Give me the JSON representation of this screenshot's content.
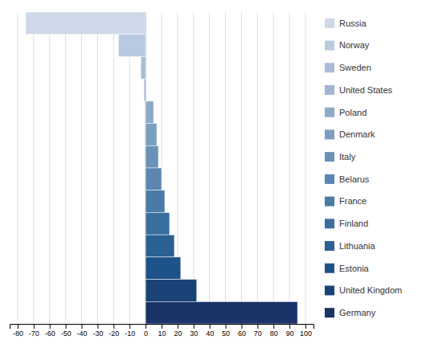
{
  "chart_data": {
    "type": "bar",
    "orientation": "horizontal",
    "categories": [
      "Russia",
      "Norway",
      "Sweden",
      "United States",
      "Poland",
      "Denmark",
      "Italy",
      "Belarus",
      "France",
      "Finland",
      "Lithuania",
      "Estonia",
      "United Kingdom",
      "Germany"
    ],
    "values": [
      -75,
      -17,
      -3,
      -1,
      5,
      7,
      8,
      10,
      12,
      15,
      18,
      22,
      32,
      95
    ],
    "colors": [
      "#cdd8e8",
      "#b8cadf",
      "#a8bcd8",
      "#9eb4d2",
      "#8aaac8",
      "#7a9ec0",
      "#6a92b8",
      "#5a86b0",
      "#4a7aa6",
      "#3a6e9e",
      "#2a6094",
      "#1e528a",
      "#1a4478",
      "#1a3468"
    ],
    "xlim": [
      -85,
      105
    ],
    "xticks": [
      -80,
      -70,
      -60,
      -50,
      -40,
      -30,
      -20,
      -10,
      0,
      10,
      20,
      30,
      40,
      50,
      60,
      70,
      80,
      90,
      100
    ],
    "grid": true,
    "legend": "right",
    "tick_labels": "x"
  }
}
